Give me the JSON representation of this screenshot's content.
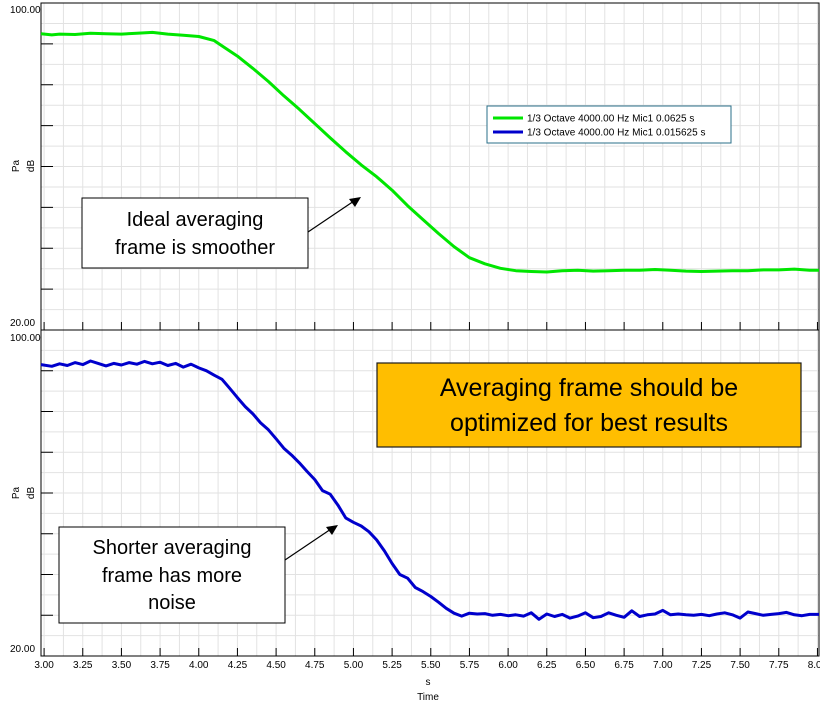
{
  "chart_data": [
    {
      "type": "line",
      "ylabel_unit": "Pa",
      "ylabel_scale": "dB",
      "ylim": [
        20,
        100
      ],
      "y_top_label": "100.00",
      "y_bottom_label": "20.00",
      "xlim": [
        2.98,
        8.01
      ],
      "grid": true,
      "legend_position": "top-right",
      "legend": [
        {
          "label": "1/3 Octave 4000.00 Hz Mic1  0.0625 s",
          "color": "#00e600"
        },
        {
          "label": "1/3 Octave 4000.00 Hz Mic1  0.015625 s",
          "color": "#0000cc"
        }
      ],
      "series": [
        {
          "name": "1/3 Octave 4000.00 Hz Mic1  0.0625 s",
          "color": "#00e600",
          "x": [
            2.98,
            3.05,
            3.1,
            3.2,
            3.3,
            3.4,
            3.5,
            3.6,
            3.7,
            3.8,
            3.9,
            4.0,
            4.1,
            4.15,
            4.25,
            4.35,
            4.45,
            4.55,
            4.65,
            4.75,
            4.85,
            4.95,
            5.05,
            5.15,
            5.25,
            5.35,
            5.45,
            5.55,
            5.65,
            5.75,
            5.85,
            5.95,
            6.05,
            6.15,
            6.25,
            6.35,
            6.45,
            6.55,
            6.65,
            6.75,
            6.85,
            6.95,
            7.05,
            7.15,
            7.25,
            7.35,
            7.45,
            7.55,
            7.65,
            7.75,
            7.85,
            7.95,
            8.01
          ],
          "values": [
            92.5,
            92.2,
            92.4,
            92.3,
            92.6,
            92.5,
            92.4,
            92.6,
            92.8,
            92.4,
            92.1,
            91.8,
            90.8,
            89.5,
            87.0,
            84.0,
            80.8,
            77.3,
            74.0,
            70.5,
            67.0,
            63.6,
            60.4,
            57.5,
            54.2,
            50.4,
            47.0,
            43.6,
            40.4,
            37.7,
            36.2,
            35.1,
            34.5,
            34.3,
            34.2,
            34.5,
            34.6,
            34.4,
            34.5,
            34.6,
            34.6,
            34.8,
            34.6,
            34.4,
            34.3,
            34.4,
            34.5,
            34.5,
            34.7,
            34.7,
            34.9,
            34.6,
            34.6
          ]
        }
      ]
    },
    {
      "type": "line",
      "ylabel_unit": "Pa",
      "ylabel_scale": "dB",
      "ylim": [
        20,
        100
      ],
      "y_top_label": "100.00",
      "y_bottom_label": "20.00",
      "xlim": [
        2.98,
        8.01
      ],
      "xlabel_unit": "s",
      "xlabel": "Time",
      "xticks": [
        "3.00",
        "3.25",
        "3.50",
        "3.75",
        "4.00",
        "4.25",
        "4.50",
        "4.75",
        "5.00",
        "5.25",
        "5.50",
        "5.75",
        "6.00",
        "6.25",
        "6.50",
        "6.75",
        "7.00",
        "7.25",
        "7.50",
        "7.75",
        "8.00"
      ],
      "grid": true,
      "series": [
        {
          "name": "1/3 Octave 4000.00 Hz Mic1  0.015625 s",
          "color": "#0000cc",
          "x": [
            2.98,
            3.05,
            3.1,
            3.15,
            3.2,
            3.25,
            3.3,
            3.35,
            3.4,
            3.45,
            3.5,
            3.55,
            3.6,
            3.65,
            3.7,
            3.75,
            3.8,
            3.85,
            3.9,
            3.95,
            4.0,
            4.05,
            4.1,
            4.15,
            4.2,
            4.25,
            4.3,
            4.35,
            4.4,
            4.45,
            4.5,
            4.55,
            4.6,
            4.65,
            4.7,
            4.75,
            4.8,
            4.85,
            4.9,
            4.95,
            5.0,
            5.05,
            5.1,
            5.15,
            5.2,
            5.25,
            5.3,
            5.35,
            5.4,
            5.45,
            5.5,
            5.55,
            5.6,
            5.65,
            5.7,
            5.75,
            5.8,
            5.85,
            5.9,
            5.95,
            6.0,
            6.05,
            6.1,
            6.15,
            6.2,
            6.25,
            6.3,
            6.35,
            6.4,
            6.45,
            6.5,
            6.55,
            6.6,
            6.65,
            6.7,
            6.75,
            6.8,
            6.85,
            6.9,
            6.95,
            7.0,
            7.05,
            7.1,
            7.15,
            7.2,
            7.25,
            7.3,
            7.35,
            7.4,
            7.45,
            7.5,
            7.55,
            7.6,
            7.65,
            7.7,
            7.75,
            7.8,
            7.85,
            7.9,
            7.95,
            8.01
          ],
          "values": [
            91.5,
            91.1,
            91.7,
            91.3,
            92.0,
            91.5,
            92.4,
            91.8,
            91.2,
            91.8,
            91.4,
            92.0,
            91.6,
            92.3,
            91.7,
            92.1,
            91.3,
            91.8,
            90.9,
            91.6,
            90.7,
            90.0,
            88.9,
            87.9,
            85.7,
            83.4,
            81.2,
            79.4,
            77.2,
            75.5,
            73.3,
            71.0,
            69.3,
            67.4,
            65.3,
            63.3,
            60.6,
            59.7,
            57.0,
            53.9,
            52.8,
            51.9,
            50.5,
            48.5,
            45.8,
            42.7,
            40.0,
            39.1,
            36.8,
            35.8,
            34.6,
            33.2,
            31.7,
            30.5,
            29.8,
            30.5,
            30.3,
            30.4,
            30.0,
            30.2,
            29.9,
            30.1,
            29.8,
            30.6,
            29.0,
            30.3,
            29.7,
            30.2,
            29.3,
            29.8,
            30.6,
            29.4,
            29.7,
            30.6,
            30.0,
            29.5,
            31.1,
            29.7,
            30.1,
            30.3,
            31.2,
            30.1,
            30.3,
            30.1,
            30.0,
            30.2,
            29.9,
            30.3,
            30.6,
            30.1,
            29.3,
            30.8,
            30.4,
            30.0,
            30.2,
            30.4,
            30.7,
            30.1,
            29.9,
            30.2,
            30.2
          ]
        }
      ]
    }
  ],
  "annotations": {
    "smooth_note": [
      "Ideal averaging",
      "frame is smoother"
    ],
    "noise_note": [
      "Shorter averaging",
      "frame has more",
      "noise"
    ],
    "headline": [
      "Averaging frame should be",
      "optimized for best results"
    ],
    "headline_bg": "#ffbe00"
  }
}
